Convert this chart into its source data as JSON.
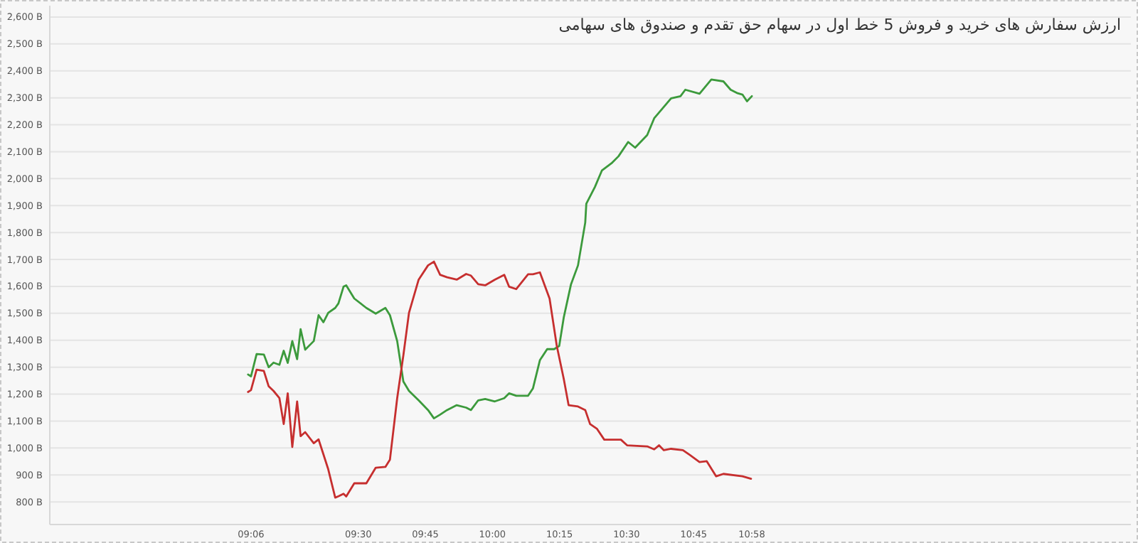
{
  "chart_data": {
    "type": "line",
    "title": "ارزش سفارش های خرید و فروش 5 خط اول در سهام حق تقدم و صندوق های سهامی",
    "xlim": [
      8.35,
      12.38
    ],
    "xticks": [
      {
        "value": 9.1,
        "label": "09:06"
      },
      {
        "value": 9.5,
        "label": "09:30"
      },
      {
        "value": 9.75,
        "label": "09:45"
      },
      {
        "value": 10,
        "label": "10:00"
      },
      {
        "value": 10.25,
        "label": "10:15"
      },
      {
        "value": 10.5,
        "label": "10:30"
      },
      {
        "value": 10.75,
        "label": "10:45"
      },
      {
        "value": 10.9667,
        "label": "10:58"
      }
    ],
    "ylim": [
      716,
      2642
    ],
    "yticks": [
      {
        "value": 800,
        "label": "800 B"
      },
      {
        "value": 900,
        "label": "900 B"
      },
      {
        "value": 1000,
        "label": "1,000 B"
      },
      {
        "value": 1100,
        "label": "1,100 B"
      },
      {
        "value": 1200,
        "label": "1,200 B"
      },
      {
        "value": 1300,
        "label": "1,300 B"
      },
      {
        "value": 1400,
        "label": "1,400 B"
      },
      {
        "value": 1500,
        "label": "1,500 B"
      },
      {
        "value": 1600,
        "label": "1,600 B"
      },
      {
        "value": 1700,
        "label": "1,700 B"
      },
      {
        "value": 1800,
        "label": "1,800 B"
      },
      {
        "value": 1900,
        "label": "1,900 B"
      },
      {
        "value": 2000,
        "label": "2,000 B"
      },
      {
        "value": 2100,
        "label": "2,100 B"
      },
      {
        "value": 2200,
        "label": "2,200 B"
      },
      {
        "value": 2300,
        "label": "2,300 B"
      },
      {
        "value": 2400,
        "label": "2,400 B"
      },
      {
        "value": 2500,
        "label": "2,500 B"
      },
      {
        "value": 2600,
        "label": "2,600 B"
      }
    ],
    "grid": "y",
    "marker": "none",
    "line_style": "solid",
    "series": [
      {
        "color": "#3c9a3c",
        "x": [
          9.089,
          9.1,
          9.121,
          9.148,
          9.166,
          9.184,
          9.206,
          9.222,
          9.237,
          9.254,
          9.272,
          9.285,
          9.302,
          9.334,
          9.352,
          9.37,
          9.388,
          9.414,
          9.426,
          9.445,
          9.455,
          9.485,
          9.53,
          9.565,
          9.601,
          9.618,
          9.645,
          9.668,
          9.689,
          9.725,
          9.76,
          9.782,
          9.805,
          9.831,
          9.867,
          9.902,
          9.92,
          9.947,
          9.973,
          10.009,
          10.044,
          10.062,
          10.089,
          10.133,
          10.151,
          10.177,
          10.204,
          10.23,
          10.249,
          10.266,
          10.293,
          10.319,
          10.346,
          10.35,
          10.382,
          10.408,
          10.444,
          10.47,
          10.506,
          10.532,
          10.577,
          10.603,
          10.666,
          10.701,
          10.719,
          10.772,
          10.816,
          10.861,
          10.888,
          10.914,
          10.932,
          10.949,
          10.967
        ],
        "values": [
          1273,
          1266,
          1349,
          1347,
          1300,
          1317,
          1309,
          1361,
          1316,
          1397,
          1330,
          1441,
          1365,
          1397,
          1493,
          1467,
          1502,
          1520,
          1537,
          1599,
          1604,
          1555,
          1520,
          1499,
          1520,
          1493,
          1397,
          1247,
          1212,
          1177,
          1141,
          1110,
          1124,
          1141,
          1159,
          1150,
          1141,
          1177,
          1182,
          1173,
          1185,
          1203,
          1194,
          1194,
          1221,
          1326,
          1367,
          1367,
          1379,
          1485,
          1608,
          1678,
          1837,
          1907,
          1969,
          2030,
          2057,
          2083,
          2136,
          2115,
          2162,
          2224,
          2298,
          2306,
          2330,
          2315,
          2368,
          2361,
          2330,
          2317,
          2312,
          2287,
          2306
        ]
      },
      {
        "color": "#c62f2f",
        "x": [
          9.089,
          9.1,
          9.121,
          9.148,
          9.166,
          9.184,
          9.206,
          9.222,
          9.237,
          9.254,
          9.272,
          9.285,
          9.302,
          9.334,
          9.352,
          9.388,
          9.414,
          9.426,
          9.445,
          9.455,
          9.485,
          9.53,
          9.565,
          9.601,
          9.618,
          9.645,
          9.668,
          9.689,
          9.725,
          9.76,
          9.782,
          9.805,
          9.831,
          9.867,
          9.902,
          9.92,
          9.947,
          9.973,
          10.009,
          10.044,
          10.062,
          10.089,
          10.133,
          10.151,
          10.177,
          10.213,
          10.24,
          10.266,
          10.284,
          10.319,
          10.346,
          10.364,
          10.39,
          10.417,
          10.479,
          10.502,
          10.577,
          10.603,
          10.621,
          10.639,
          10.666,
          10.71,
          10.736,
          10.772,
          10.799,
          10.834,
          10.861,
          10.932,
          10.964
        ],
        "values": [
          1208,
          1215,
          1291,
          1286,
          1229,
          1212,
          1185,
          1089,
          1203,
          1004,
          1173,
          1044,
          1059,
          1018,
          1032,
          921,
          816,
          821,
          830,
          820,
          869,
          869,
          927,
          930,
          957,
          1185,
          1344,
          1502,
          1625,
          1678,
          1692,
          1643,
          1634,
          1625,
          1646,
          1640,
          1608,
          1604,
          1625,
          1643,
          1599,
          1590,
          1645,
          1645,
          1652,
          1555,
          1379,
          1256,
          1159,
          1154,
          1141,
          1089,
          1071,
          1031,
          1031,
          1010,
          1006,
          995,
          1010,
          992,
          997,
          992,
          974,
          948,
          951,
          895,
          904,
          895,
          886
        ]
      }
    ]
  }
}
